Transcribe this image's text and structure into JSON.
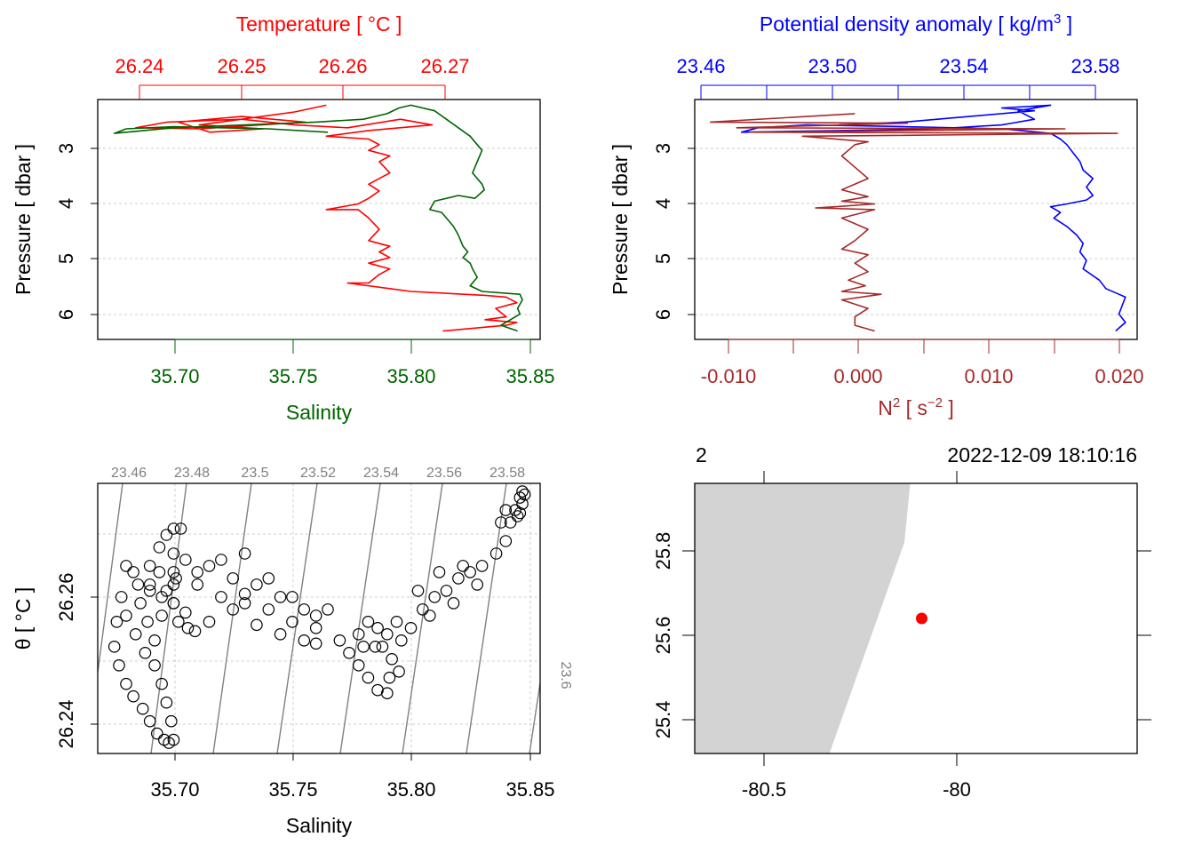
{
  "chart_data": [
    {
      "type": "line",
      "panel": "temperature-salinity-profile",
      "top_axis_label": "Temperature [ °C ]",
      "top_axis_ticks": [
        "26.24",
        "26.25",
        "26.26",
        "26.27"
      ],
      "bottom_axis_label": "Salinity",
      "bottom_axis_ticks": [
        "35.70",
        "35.75",
        "35.80",
        "35.85"
      ],
      "y_axis_label": "Pressure [ dbar ]",
      "y_axis_ticks": [
        "3",
        "4",
        "5",
        "6"
      ],
      "y_reversed": true,
      "ylim": [
        2.2,
        6.45
      ],
      "temperature_xlim": [
        26.2364,
        26.2782
      ],
      "salinity_xlim": [
        35.668,
        35.8545
      ],
      "series": [
        {
          "name": "Temperature",
          "color": "#ff0000",
          "x": [
            26.258,
            26.255,
            26.25,
            26.246,
            26.252,
            26.247,
            26.244,
            26.25,
            26.256,
            26.246,
            26.24,
            26.243,
            26.25,
            26.255,
            26.26,
            26.265,
            26.268,
            26.262,
            26.258,
            26.262,
            26.263,
            26.262,
            26.264,
            26.263,
            26.264,
            26.262,
            26.263,
            26.262,
            26.261,
            26.258,
            26.261,
            26.262,
            26.263,
            26.262,
            26.264,
            26.263,
            26.264,
            26.262,
            26.264,
            26.263,
            26.262,
            26.26,
            26.264,
            26.266,
            26.273,
            26.275,
            26.276,
            26.274,
            26.275,
            26.273,
            26.276,
            26.275,
            26.272,
            26.269
          ],
          "y": [
            2.3,
            2.42,
            2.55,
            2.65,
            2.72,
            2.78,
            2.6,
            2.5,
            2.6,
            2.72,
            2.7,
            2.6,
            2.55,
            2.65,
            2.7,
            2.55,
            2.65,
            2.75,
            2.85,
            2.9,
            3.0,
            3.1,
            3.2,
            3.3,
            3.5,
            3.7,
            3.82,
            3.95,
            4.05,
            4.15,
            4.15,
            4.3,
            4.5,
            4.7,
            4.8,
            4.9,
            5.0,
            5.1,
            5.2,
            5.3,
            5.45,
            5.45,
            5.55,
            5.6,
            5.67,
            5.7,
            5.8,
            5.9,
            6.05,
            6.1,
            6.15,
            6.2,
            6.25,
            6.3
          ]
        },
        {
          "name": "Salinity",
          "color": "#006400",
          "x": [
            35.765,
            35.74,
            35.72,
            35.7,
            35.68,
            35.675,
            35.7,
            35.73,
            35.76,
            35.78,
            35.79,
            35.795,
            35.8,
            35.81,
            35.815,
            35.82,
            35.825,
            35.83,
            35.828,
            35.826,
            35.83,
            35.831,
            35.827,
            35.82,
            35.81,
            35.808,
            35.813,
            35.815,
            35.818,
            35.82,
            35.822,
            35.824,
            35.822,
            35.825,
            35.826,
            35.828,
            35.825,
            35.83,
            35.846,
            35.847,
            35.845,
            35.846,
            35.842,
            35.838,
            35.845
          ],
          "y": [
            2.78,
            2.72,
            2.7,
            2.68,
            2.72,
            2.8,
            2.7,
            2.65,
            2.6,
            2.55,
            2.45,
            2.35,
            2.3,
            2.4,
            2.55,
            2.7,
            2.85,
            3.1,
            3.3,
            3.5,
            3.7,
            3.8,
            3.95,
            3.9,
            4.0,
            4.15,
            4.2,
            4.3,
            4.45,
            4.6,
            4.8,
            4.9,
            5.0,
            5.1,
            5.2,
            5.35,
            5.5,
            5.6,
            5.65,
            5.75,
            5.9,
            6.0,
            6.1,
            6.2,
            6.3
          ]
        }
      ]
    },
    {
      "type": "line",
      "panel": "density-n2-profile",
      "top_axis_label": "Potential density anomaly [ kg/m3 ]",
      "top_axis_label_prefix": "Potential density anomaly [ kg/m",
      "top_axis_label_superscript": "3",
      "top_axis_label_suffix": " ]",
      "top_axis_ticks": [
        "23.46",
        "23.50",
        "23.54",
        "23.58"
      ],
      "bottom_axis_label": "N2 [ s-2 ]",
      "bottom_axis_ticks": [
        "-0.010",
        "0.000",
        "0.010",
        "0.020"
      ],
      "y_axis_label": "Pressure [ dbar ]",
      "y_axis_ticks": [
        "3",
        "4",
        "5",
        "6"
      ],
      "y_reversed": true,
      "ylim": [
        2.2,
        6.45
      ],
      "density_xlim": [
        23.4556,
        23.5916
      ],
      "n2_xlim": [
        -0.0122,
        0.0215
      ],
      "series": [
        {
          "name": "Potential density anomaly",
          "color": "#0000ff",
          "x": [
            23.5,
            23.52,
            23.54,
            23.56,
            23.55,
            23.565,
            23.555,
            23.56,
            23.55,
            23.53,
            23.5,
            23.47,
            23.475,
            23.49,
            23.52,
            23.55,
            23.565,
            23.568,
            23.57,
            23.572,
            23.574,
            23.575,
            23.578,
            23.576,
            23.578,
            23.576,
            23.57,
            23.565,
            23.568,
            23.566,
            23.57,
            23.573,
            23.575,
            23.574,
            23.576,
            23.575,
            23.58,
            23.582,
            23.586,
            23.588,
            23.587,
            23.586,
            23.588,
            23.585
          ],
          "y": [
            2.65,
            2.6,
            2.5,
            2.4,
            2.35,
            2.3,
            2.4,
            2.55,
            2.65,
            2.72,
            2.75,
            2.78,
            2.7,
            2.65,
            2.68,
            2.72,
            2.8,
            2.9,
            3.0,
            3.15,
            3.3,
            3.45,
            3.6,
            3.75,
            3.9,
            3.98,
            4.05,
            4.1,
            4.2,
            4.3,
            4.45,
            4.6,
            4.75,
            4.9,
            5.05,
            5.2,
            5.4,
            5.55,
            5.65,
            5.7,
            5.85,
            6.0,
            6.15,
            6.3
          ]
        },
        {
          "name": "N2",
          "color": "#a52a2a",
          "x": [
            0.0,
            -0.011,
            0.004,
            -0.009,
            0.016,
            -0.008,
            0.02,
            -0.004,
            0.001,
            0.0,
            -0.001,
            0.0,
            0.001,
            -0.001,
            0.001,
            -0.001,
            0.0015,
            -0.0015,
            -0.003,
            0.0015,
            -0.001,
            0.001,
            0.0,
            -0.001,
            0.001,
            0.0,
            0.001,
            -0.0005,
            0.0008,
            -0.001,
            0.002,
            -0.001,
            0.001,
            0.0,
            0.0,
            0.0015
          ],
          "y": [
            2.45,
            2.6,
            2.62,
            2.7,
            2.72,
            2.78,
            2.8,
            2.85,
            2.95,
            3.0,
            3.2,
            3.4,
            3.6,
            3.8,
            3.92,
            4.0,
            4.05,
            4.1,
            4.12,
            4.15,
            4.3,
            4.5,
            4.7,
            4.85,
            4.95,
            5.1,
            5.25,
            5.4,
            5.5,
            5.6,
            5.65,
            5.75,
            5.9,
            6.05,
            6.2,
            6.3
          ]
        }
      ]
    },
    {
      "type": "scatter",
      "panel": "ts-diagram",
      "xlabel": "Salinity",
      "ylabel": "θ [ °C ]",
      "x_ticks": [
        "35.70",
        "35.75",
        "35.80",
        "35.85"
      ],
      "y_ticks": [
        "26.24",
        "26.26"
      ],
      "xlim": [
        35.668,
        35.8545
      ],
      "ylim": [
        26.2328,
        26.2763
      ],
      "marker": "open-circle",
      "density_contours": [
        "23.46",
        "23.48",
        "23.5",
        "23.52",
        "23.54",
        "23.56",
        "23.58",
        "23.6"
      ],
      "points": [
        [
          35.678,
          26.258
        ],
        [
          35.676,
          26.254
        ],
        [
          35.675,
          26.25
        ],
        [
          35.677,
          26.247
        ],
        [
          35.68,
          26.244
        ],
        [
          35.683,
          26.242
        ],
        [
          35.687,
          26.24
        ],
        [
          35.69,
          26.238
        ],
        [
          35.693,
          26.236
        ],
        [
          35.696,
          26.235
        ],
        [
          35.698,
          26.2345
        ],
        [
          35.7,
          26.235
        ],
        [
          35.68,
          26.255
        ],
        [
          35.684,
          26.252
        ],
        [
          35.688,
          26.249
        ],
        [
          35.692,
          26.247
        ],
        [
          35.695,
          26.244
        ],
        [
          35.697,
          26.241
        ],
        [
          35.699,
          26.238
        ],
        [
          35.683,
          26.262
        ],
        [
          35.686,
          26.257
        ],
        [
          35.689,
          26.254
        ],
        [
          35.692,
          26.251
        ],
        [
          35.695,
          26.255
        ],
        [
          35.697,
          26.259
        ],
        [
          35.694,
          26.262
        ],
        [
          35.69,
          26.263
        ],
        [
          35.694,
          26.266
        ],
        [
          35.697,
          26.268
        ],
        [
          35.7,
          26.269
        ],
        [
          35.703,
          26.269
        ],
        [
          35.7,
          26.265
        ],
        [
          35.701,
          26.261
        ],
        [
          35.7,
          26.257
        ],
        [
          35.702,
          26.254
        ],
        [
          35.706,
          26.253
        ],
        [
          35.709,
          26.2525
        ],
        [
          35.68,
          26.263
        ],
        [
          35.69,
          26.26
        ],
        [
          35.7,
          26.262
        ],
        [
          35.71,
          26.26
        ],
        [
          35.72,
          26.258
        ],
        [
          35.73,
          26.257
        ],
        [
          35.74,
          26.256
        ],
        [
          35.75,
          26.254
        ],
        [
          35.76,
          26.255
        ],
        [
          35.685,
          26.26
        ],
        [
          35.695,
          26.258
        ],
        [
          35.705,
          26.264
        ],
        [
          35.715,
          26.263
        ],
        [
          35.725,
          26.261
        ],
        [
          35.735,
          26.26
        ],
        [
          35.745,
          26.258
        ],
        [
          35.755,
          26.256
        ],
        [
          35.765,
          26.256
        ],
        [
          35.69,
          26.259
        ],
        [
          35.7,
          26.257
        ],
        [
          35.71,
          26.262
        ],
        [
          35.72,
          26.264
        ],
        [
          35.73,
          26.265
        ],
        [
          35.74,
          26.261
        ],
        [
          35.75,
          26.258
        ],
        [
          35.76,
          26.253
        ],
        [
          35.715,
          26.254
        ],
        [
          35.725,
          26.256
        ],
        [
          35.735,
          26.2535
        ],
        [
          35.745,
          26.252
        ],
        [
          35.755,
          26.251
        ],
        [
          35.76,
          26.2505
        ],
        [
          35.705,
          26.2555
        ],
        [
          35.7,
          26.26
        ],
        [
          35.73,
          26.2585
        ],
        [
          35.77,
          26.251
        ],
        [
          35.774,
          26.249
        ],
        [
          35.778,
          26.247
        ],
        [
          35.782,
          26.245
        ],
        [
          35.786,
          26.243
        ],
        [
          35.79,
          26.2425
        ],
        [
          35.778,
          26.252
        ],
        [
          35.782,
          26.254
        ],
        [
          35.786,
          26.253
        ],
        [
          35.79,
          26.252
        ],
        [
          35.794,
          26.254
        ],
        [
          35.788,
          26.25
        ],
        [
          35.792,
          26.248
        ],
        [
          35.795,
          26.246
        ],
        [
          35.791,
          26.245
        ],
        [
          35.785,
          26.25
        ],
        [
          35.78,
          26.25
        ],
        [
          35.796,
          26.251
        ],
        [
          35.8,
          26.253
        ],
        [
          35.805,
          26.256
        ],
        [
          35.81,
          26.258
        ],
        [
          35.815,
          26.259
        ],
        [
          35.82,
          26.261
        ],
        [
          35.825,
          26.262
        ],
        [
          35.83,
          26.263
        ],
        [
          35.808,
          26.255
        ],
        [
          35.818,
          26.257
        ],
        [
          35.828,
          26.26
        ],
        [
          35.803,
          26.259
        ],
        [
          35.812,
          26.262
        ],
        [
          35.822,
          26.263
        ],
        [
          35.836,
          26.265
        ],
        [
          35.84,
          26.267
        ],
        [
          35.842,
          26.27
        ],
        [
          35.844,
          26.272
        ],
        [
          35.846,
          26.274
        ],
        [
          35.847,
          26.275
        ],
        [
          35.845,
          26.271
        ],
        [
          35.84,
          26.272
        ],
        [
          35.838,
          26.27
        ],
        [
          35.847,
          26.273
        ],
        [
          35.848,
          26.2745
        ],
        [
          35.846,
          26.2715
        ]
      ]
    },
    {
      "type": "map",
      "panel": "station-map",
      "station_label": "2",
      "timestamp": "2022-12-09 18:10:16",
      "x_ticks": [
        "-80.5",
        "-80"
      ],
      "y_ticks": [
        "25.4",
        "25.6",
        "25.8"
      ],
      "xlim": [
        -80.68,
        -79.53
      ],
      "ylim": [
        25.32,
        25.96
      ],
      "land_color": "#d3d3d3",
      "land_coastline": [
        [
          -80.68,
          25.96
        ],
        [
          -80.12,
          25.96
        ],
        [
          -80.135,
          25.82
        ],
        [
          -80.33,
          25.32
        ],
        [
          -80.68,
          25.32
        ]
      ],
      "station": {
        "lon": -80.09,
        "lat": 25.64,
        "color": "#ff0000"
      }
    }
  ]
}
